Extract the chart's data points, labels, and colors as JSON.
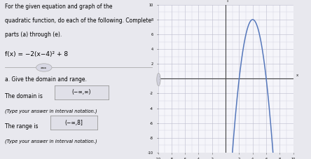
{
  "title_lines": [
    "For the given equation and graph of the",
    "quadratic function, do each of the following. Complete",
    "parts (a) through (e)."
  ],
  "equation": "f(x) = −2(x−4)² + 8",
  "part_a_label": "a. Give the domain and range.",
  "domain_label": "The domain is",
  "domain_value": "(−∞,∞)",
  "domain_note": "(Type your answer in interval notation.)",
  "range_label": "The range is",
  "range_value": "(−∞,8]",
  "range_note": "(Type your answer in interval notation.)",
  "graph_xlim": [
    -10,
    10
  ],
  "graph_ylim": [
    -10,
    10
  ],
  "graph_x_ticks": [
    -10,
    -8,
    -6,
    -4,
    -2,
    2,
    4,
    6,
    8,
    10
  ],
  "graph_y_ticks": [
    -10,
    -8,
    -6,
    -4,
    -2,
    2,
    4,
    6,
    8,
    10
  ],
  "curve_color": "#5577bb",
  "grid_color": "#ccccdd",
  "axis_color": "#444444",
  "bg_color": "#e8e8ee",
  "left_panel_color": "#dcdce8",
  "right_panel_color": "#f5f5fa",
  "text_color": "#111111",
  "box_fill": "#e0e0e8",
  "box_edge": "#999999",
  "divider_color": "#aaaaaa"
}
